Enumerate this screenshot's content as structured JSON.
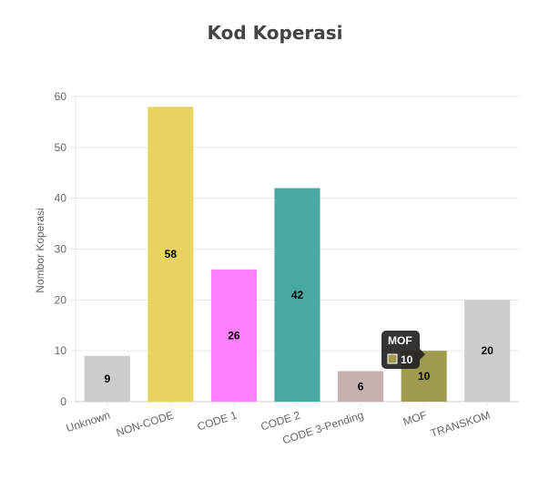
{
  "chart_data": {
    "type": "bar",
    "title": "Kod Koperasi",
    "ylabel": "Nombor Koperasi",
    "xlabel": "",
    "ylim": [
      0,
      60
    ],
    "yticks": [
      "0",
      "10",
      "20",
      "30",
      "40",
      "50",
      "60"
    ],
    "grid": true,
    "categories": [
      "Unknown",
      "NON-CODE",
      "CODE 1",
      "CODE 2",
      "CODE 3-Pending",
      "MOF",
      "TRANSKOM"
    ],
    "values": [
      9,
      58,
      26,
      42,
      6,
      10,
      20
    ],
    "value_labels": [
      "9",
      "58",
      "26",
      "42",
      "6",
      "10",
      "20"
    ],
    "colors": [
      "#cccccc",
      "#e8d45e",
      "#ff80ff",
      "#4aa8a4",
      "#c7b0b0",
      "#a09a4c",
      "#cccccc"
    ]
  },
  "tooltip": {
    "title": "MOF",
    "value": "10",
    "swatch_color": "#a09a4c"
  }
}
